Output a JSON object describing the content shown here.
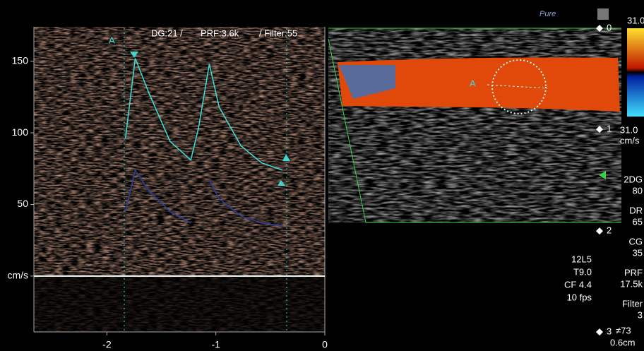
{
  "chart_data": {
    "type": "line",
    "annotations": [
      "DG:21 /",
      "PRF:3.6k",
      "/ Filter:55",
      "A"
    ],
    "xlim": [
      -2.67,
      0
    ],
    "xticks": [
      -2,
      -1,
      0
    ],
    "ylim": [
      -39,
      174
    ],
    "yticks": [
      150,
      100,
      50,
      {
        "value": 0,
        "label": "cm/s"
      }
    ],
    "x": [
      -1.83,
      -1.74,
      -1.61,
      -1.42,
      -1.23,
      -1.16,
      -1.06,
      -0.97,
      -0.77,
      -0.58,
      -0.39
    ],
    "series": [
      {
        "color": "#3fd6d0",
        "values": [
          96,
          152,
          127,
          94,
          81,
          103,
          148,
          118,
          91,
          79,
          74
        ]
      },
      {
        "color": "#2a3f9a",
        "values": [
          45,
          74,
          59,
          45,
          37,
          null,
          67,
          54,
          42,
          37,
          35
        ]
      }
    ]
  },
  "image": {
    "logo": "Pure",
    "marker": "A",
    "depth_marks": [
      "0",
      "1",
      "2",
      "3"
    ],
    "scale_top": "31.0",
    "scale_bottom": "31.0",
    "scale_unit": "cm/s",
    "probe": [
      "12L5",
      "T9.0",
      "CF 4.4",
      "10 fps"
    ],
    "params": [
      [
        "2DG",
        "80"
      ],
      [
        "DR",
        "65"
      ],
      [
        "CG",
        "35"
      ],
      [
        "PRF",
        "17.5k"
      ],
      [
        "Filter",
        "3"
      ]
    ],
    "footer": [
      "≠73",
      "0.6cm"
    ]
  }
}
